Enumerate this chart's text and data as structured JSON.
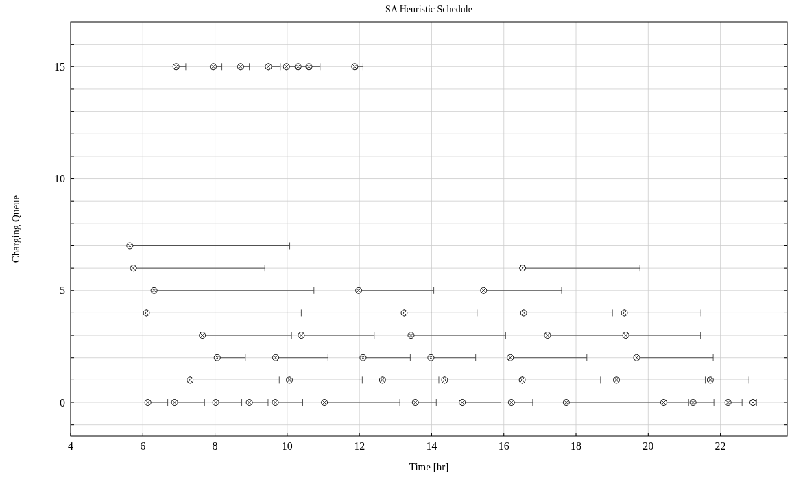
{
  "chart_data": {
    "type": "scatter",
    "title": "SA Heuristic Schedule",
    "xlabel": "Time [hr]",
    "ylabel": "Charging Queue",
    "xlim": [
      4,
      23.85
    ],
    "xticks": [
      4,
      6,
      8,
      10,
      12,
      14,
      16,
      18,
      20,
      22
    ],
    "ylim": [
      -1.5,
      17
    ],
    "yticks": [
      {
        "value": -1,
        "label": null
      },
      0,
      {
        "value": 1,
        "label": null
      },
      {
        "value": 2,
        "label": null
      },
      {
        "value": 3,
        "label": null
      },
      {
        "value": 4,
        "label": null
      },
      5,
      {
        "value": 6,
        "label": null
      },
      {
        "value": 7,
        "label": null
      },
      {
        "value": 8,
        "label": null
      },
      {
        "value": 9,
        "label": null
      },
      10,
      {
        "value": 11,
        "label": null
      },
      {
        "value": 12,
        "label": null
      },
      {
        "value": 13,
        "label": null
      },
      {
        "value": 14,
        "label": null
      },
      15,
      {
        "value": 16,
        "label": null
      }
    ],
    "grid": true,
    "marker": "circle",
    "series": [
      {
        "color": "#000000",
        "x": [
          6.92,
          7.95,
          8.71,
          9.48,
          9.98,
          10.3,
          10.6,
          11.87,
          5.64,
          5.74,
          16.52,
          6.31,
          11.98,
          15.44,
          6.1,
          13.24,
          16.55,
          19.34,
          7.65,
          10.39,
          13.43,
          17.21,
          19.38,
          8.06,
          9.68,
          12.1,
          13.98,
          16.18,
          19.68,
          7.31,
          10.06,
          12.64,
          14.36,
          16.51,
          19.12,
          21.72,
          6.14,
          6.88,
          8.02,
          8.95,
          9.67,
          11.03,
          13.55,
          14.85,
          16.21,
          17.73,
          20.43,
          21.24,
          22.21,
          22.9
        ],
        "values": [
          15,
          15,
          15,
          15,
          15,
          15,
          15,
          15,
          7,
          6,
          6,
          5,
          5,
          5,
          4,
          4,
          4,
          4,
          3,
          3,
          3,
          3,
          3,
          2,
          2,
          2,
          2,
          2,
          2,
          1,
          1,
          1,
          1,
          1,
          1,
          1,
          0,
          0,
          0,
          0,
          0,
          0,
          0,
          0,
          0,
          0,
          0,
          0,
          0,
          0
        ],
        "xerrors": [
          [
            6.92,
            7.19
          ],
          [
            7.95,
            8.19
          ],
          [
            8.71,
            8.95
          ],
          [
            9.48,
            9.81
          ],
          [
            9.98,
            10.3
          ],
          [
            10.3,
            10.6
          ],
          [
            10.6,
            10.91
          ],
          [
            11.87,
            12.1
          ],
          [
            5.64,
            10.07
          ],
          [
            5.74,
            9.38
          ],
          [
            16.52,
            19.77
          ],
          [
            6.31,
            10.74
          ],
          [
            11.98,
            14.06
          ],
          [
            15.44,
            17.6
          ],
          [
            6.1,
            10.39
          ],
          [
            13.24,
            15.26
          ],
          [
            16.55,
            19.01
          ],
          [
            19.34,
            21.46
          ],
          [
            7.65,
            10.12
          ],
          [
            10.39,
            12.41
          ],
          [
            13.43,
            16.05
          ],
          [
            17.21,
            19.3
          ],
          [
            19.38,
            21.45
          ],
          [
            8.06,
            8.84
          ],
          [
            9.68,
            11.13
          ],
          [
            12.1,
            13.41
          ],
          [
            13.98,
            15.22
          ],
          [
            16.18,
            18.3
          ],
          [
            19.68,
            21.8
          ],
          [
            7.31,
            9.78
          ],
          [
            10.06,
            12.08
          ],
          [
            12.64,
            14.2
          ],
          [
            14.36,
            16.51
          ],
          [
            16.51,
            18.68
          ],
          [
            19.12,
            21.58
          ],
          [
            21.72,
            22.79
          ],
          [
            6.14,
            6.69
          ],
          [
            6.88,
            7.71
          ],
          [
            8.02,
            8.74
          ],
          [
            8.95,
            9.47
          ],
          [
            9.67,
            10.43
          ],
          [
            11.03,
            13.12
          ],
          [
            13.55,
            14.13
          ],
          [
            14.85,
            15.92
          ],
          [
            16.21,
            16.8
          ],
          [
            17.73,
            20.43
          ],
          [
            20.43,
            21.12
          ],
          [
            21.24,
            21.82
          ],
          [
            22.21,
            22.6
          ],
          [
            22.9,
            23.0
          ]
        ]
      }
    ]
  }
}
